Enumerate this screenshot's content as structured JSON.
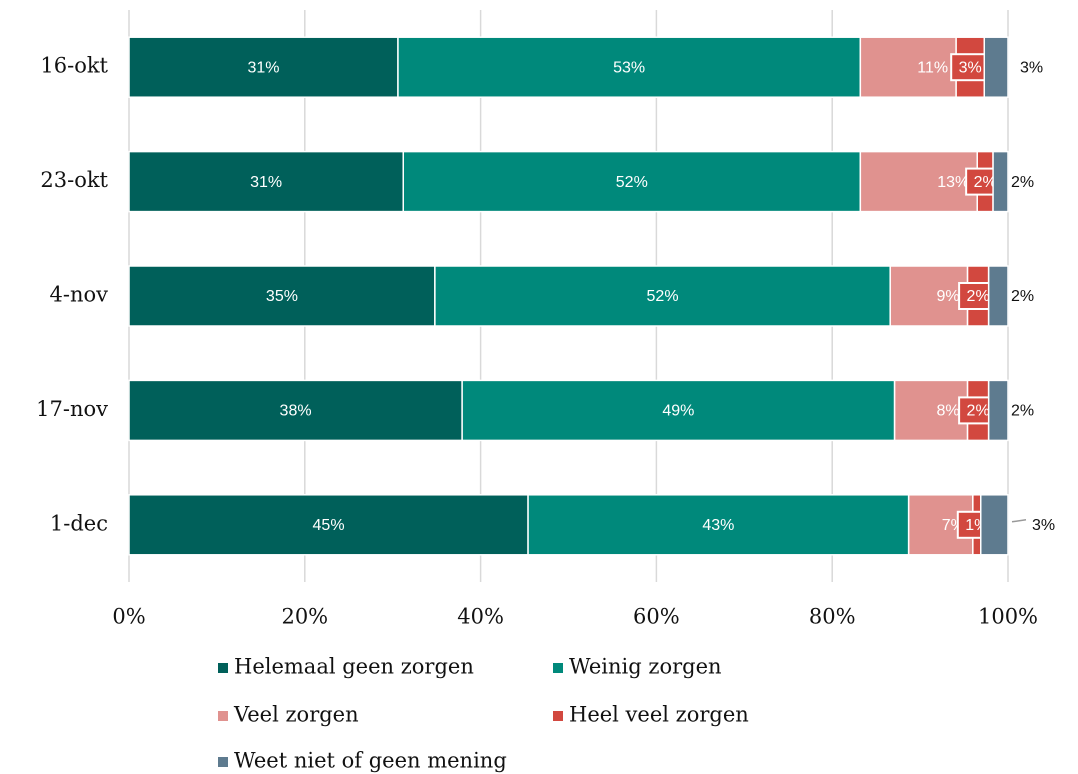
{
  "chart_data": {
    "type": "stacked-bar-horizontal",
    "categories": [
      "16-okt",
      "23-okt",
      "4-nov",
      "17-nov",
      "1-dec"
    ],
    "series": [
      {
        "name": "Helemaal geen zorgen",
        "color": "#00605a",
        "values": [
          30.6,
          31.2,
          34.8,
          37.9,
          45.4
        ],
        "value_labels": [
          "31%",
          "31%",
          "35%",
          "38%",
          "45%"
        ]
      },
      {
        "name": "Weinig zorgen",
        "color": "#00897b",
        "values": [
          52.6,
          52.0,
          51.8,
          49.2,
          43.3
        ],
        "value_labels": [
          "53%",
          "52%",
          "52%",
          "49%",
          "43%"
        ]
      },
      {
        "name": "Veel zorgen",
        "color": "#e0928f",
        "values": [
          10.9,
          13.3,
          8.8,
          8.3,
          7.3
        ],
        "value_labels": [
          "11%",
          "13%",
          "9%",
          "8%",
          "7%"
        ]
      },
      {
        "name": "Heel veel zorgen",
        "color": "#d2483f",
        "values": [
          3.2,
          1.8,
          2.4,
          2.4,
          0.9
        ],
        "value_labels": [
          "3%",
          "2%",
          "2%",
          "2%",
          "1%"
        ]
      },
      {
        "name": "Weet niet of geen mening",
        "color": "#5e7b8f",
        "values": [
          2.7,
          1.7,
          2.2,
          2.2,
          3.1
        ],
        "value_labels": [
          "3%",
          "2%",
          "2%",
          "2%",
          "3%"
        ]
      }
    ],
    "xlim": [
      0,
      100
    ],
    "xticks": [
      {
        "value": 0,
        "label": "0%"
      },
      {
        "value": 20,
        "label": "20%"
      },
      {
        "value": 40,
        "label": "40%"
      },
      {
        "value": 60,
        "label": "60%"
      },
      {
        "value": 80,
        "label": "80%"
      },
      {
        "value": 100,
        "label": "100%"
      }
    ],
    "grid": true
  }
}
